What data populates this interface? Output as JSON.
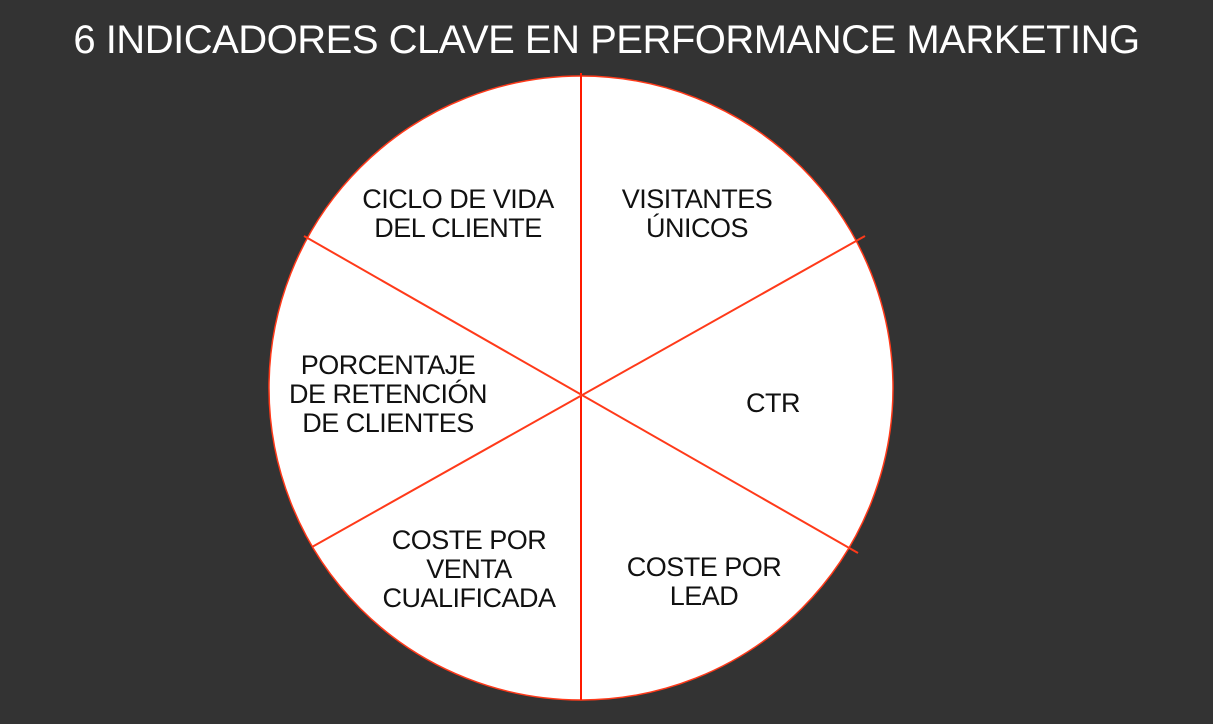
{
  "title": "6 INDICADORES CLAVE EN PERFORMANCE MARKETING",
  "colors": {
    "background": "#333333",
    "circle_fill": "#ffffff",
    "divider": "#ff3a1a",
    "text": "#111111",
    "title": "#ffffff"
  },
  "segments": [
    {
      "label": "VISITANTES\nÚNICOS"
    },
    {
      "label": "CTR"
    },
    {
      "label": "COSTE POR\nLEAD"
    },
    {
      "label": "COSTE POR\nVENTA\nCUALIFICADA"
    },
    {
      "label": "PORCENTAJE\nDE RETENCIÓN\nDE CLIENTES"
    },
    {
      "label": "CICLO DE VIDA\nDEL CLIENTE"
    }
  ]
}
